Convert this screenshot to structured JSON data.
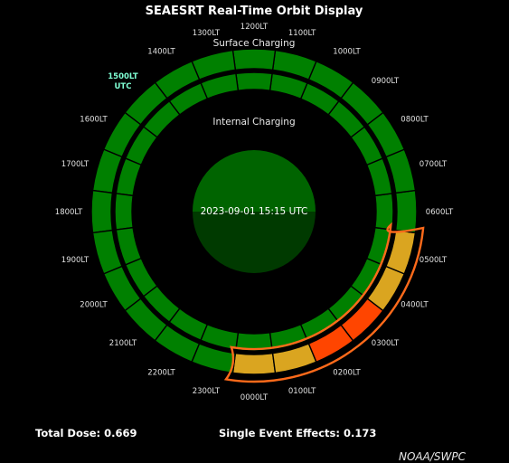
{
  "title": "SEAESRT Real-Time Orbit Display",
  "surface_label": "Surface Charging",
  "internal_label": "Internal Charging",
  "center_time": "2023-09-01 15:15 UTC",
  "current_marker": {
    "line1": "1500LT",
    "line2": "UTC",
    "color": "#7fffd4"
  },
  "footer": {
    "total_dose": "Total Dose: 0.669",
    "see": "Single Event Effects: 0.173"
  },
  "credit": "NOAA/SWPC",
  "colors": {
    "green": "#008000",
    "yellow": "#daa520",
    "red": "#ff4500",
    "highlight": "#ff6a1a",
    "center_top": "#006400",
    "center_bottom": "#003a00"
  },
  "chart_data": {
    "type": "polar-ring",
    "title": "SEAESRT Real-Time Orbit Display",
    "hours": [
      "0000LT",
      "0100LT",
      "0200LT",
      "0300LT",
      "0400LT",
      "0500LT",
      "0600LT",
      "0700LT",
      "0800LT",
      "0900LT",
      "1000LT",
      "1100LT",
      "1200LT",
      "1300LT",
      "1400LT",
      "1500LT",
      "1600LT",
      "1700LT",
      "1800LT",
      "1900LT",
      "2000LT",
      "2100LT",
      "2200LT",
      "2300LT"
    ],
    "current_hour": "1500LT",
    "surface_charging": [
      "yellow",
      "yellow",
      "red",
      "red",
      "yellow",
      "yellow",
      "green",
      "green",
      "green",
      "green",
      "green",
      "green",
      "green",
      "green",
      "green",
      "green",
      "green",
      "green",
      "green",
      "green",
      "green",
      "green",
      "green",
      "green"
    ],
    "internal_charging": [
      "green",
      "green",
      "green",
      "green",
      "green",
      "green",
      "green",
      "green",
      "green",
      "green",
      "green",
      "green",
      "green",
      "green",
      "green",
      "green",
      "green",
      "green",
      "green",
      "green",
      "green",
      "green",
      "green",
      "green"
    ],
    "highlight_hours": [
      "0000LT",
      "0100LT",
      "0200LT",
      "0300LT",
      "0400LT",
      "0500LT"
    ]
  }
}
